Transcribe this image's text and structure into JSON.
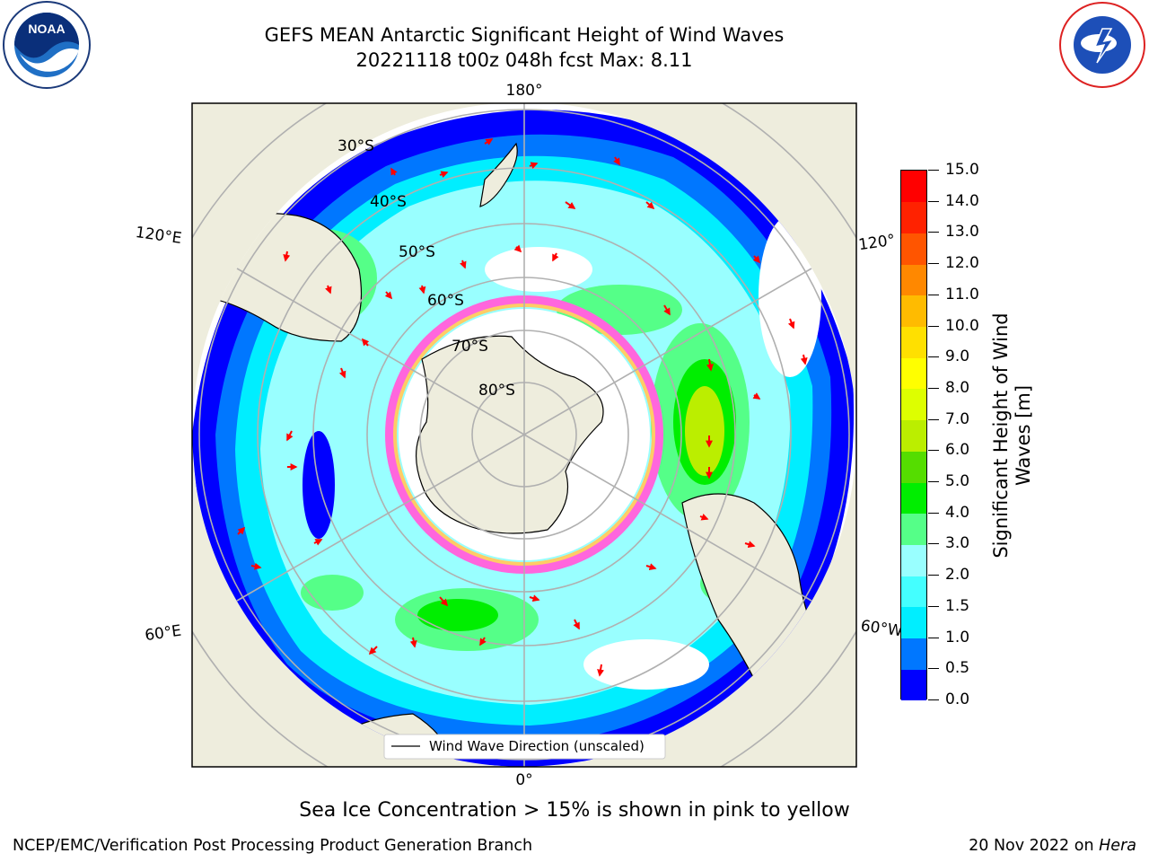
{
  "header": {
    "title_line1": "GEFS MEAN Antarctic Significant Height of Wind Waves",
    "title_line2": "20221118 t00z 048h fcst   Max: 8.11"
  },
  "map": {
    "longitude_labels": {
      "top": "180°",
      "bottom": "0°",
      "upper_left": "120°E",
      "upper_right": "120°",
      "lower_left": "60°E",
      "lower_right": "60°W"
    },
    "latitude_labels": [
      "30°S",
      "40°S",
      "50°S",
      "60°S",
      "70°S",
      "80°S"
    ],
    "legend_label": "Wind Wave Direction (unscaled)",
    "colors": {
      "land": "#eeeddd",
      "ocean_none": "#ffffff",
      "ice_pink": "#ff66dd",
      "ice_yellow": "#ffcc66",
      "arrow": "#ff0000",
      "grid": "#b0b0b0"
    }
  },
  "colorbar": {
    "axis_title": "Significant Height of Wind Waves [m]",
    "tick_labels": [
      "0.0",
      "0.5",
      "1.0",
      "1.5",
      "2.0",
      "3.0",
      "4.0",
      "5.0",
      "6.0",
      "7.0",
      "8.0",
      "9.0",
      "10.0",
      "11.0",
      "12.0",
      "13.0",
      "14.0",
      "15.0"
    ],
    "colors": [
      "#0000ff",
      "#0077ff",
      "#00eeff",
      "#44ffff",
      "#99ffff",
      "#55ff88",
      "#00ee00",
      "#55dd00",
      "#bbee00",
      "#ddff00",
      "#ffff00",
      "#ffe000",
      "#ffbb00",
      "#ff8800",
      "#ff5500",
      "#ff2200",
      "#ff0000"
    ]
  },
  "caption": "Sea Ice Concentration > 15% is shown in pink to yellow",
  "footer": {
    "left": "NCEP/EMC/Verification Post Processing Product Generation Branch",
    "right_date": "20 Nov 2022 on",
    "right_host": "Hera"
  }
}
